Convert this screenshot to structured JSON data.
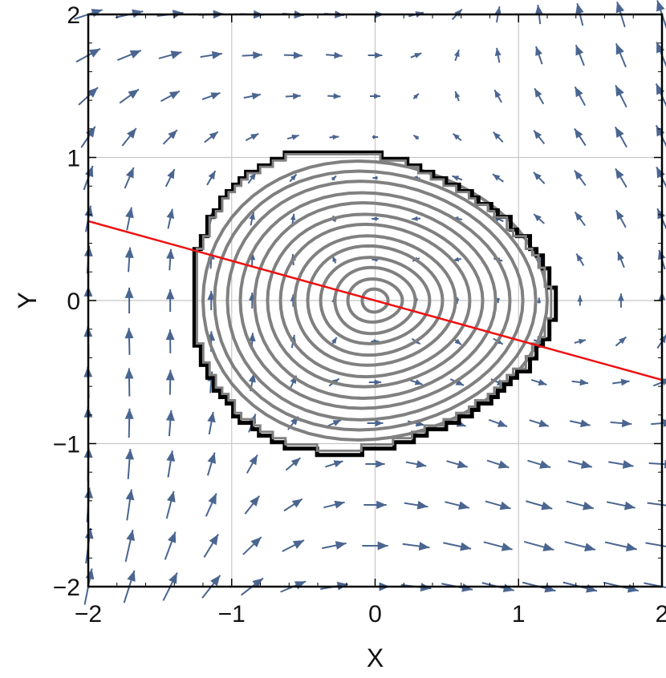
{
  "chart_data": {
    "type": "vector_field_contour",
    "xlabel": "X",
    "ylabel": "Y",
    "xlim": [
      -2,
      2
    ],
    "ylim": [
      -2,
      2
    ],
    "x_ticks": [
      {
        "value": -2,
        "label": "−2"
      },
      {
        "value": -1,
        "label": "−1"
      },
      {
        "value": 0,
        "label": "0"
      },
      {
        "value": 1,
        "label": "1"
      },
      {
        "value": 2,
        "label": "2"
      }
    ],
    "y_ticks": [
      {
        "value": -2,
        "label": "−2"
      },
      {
        "value": -1,
        "label": "−1"
      },
      {
        "value": 0,
        "label": "0"
      },
      {
        "value": 1,
        "label": "1"
      },
      {
        "value": 2,
        "label": "2"
      }
    ],
    "grid": true,
    "vector_field": {
      "color": "#4a6590",
      "x_range": [
        -2,
        2
      ],
      "y_range": [
        -2,
        2
      ],
      "grid_count": 15
    },
    "contours": {
      "color": "#808080",
      "boundary_color": "#000000",
      "center": [
        0,
        0
      ],
      "radii_x": [
        0.09,
        0.19,
        0.28,
        0.38,
        0.47,
        0.56,
        0.66,
        0.75,
        0.84,
        0.94,
        1.03,
        1.12,
        1.2
      ],
      "radii_y": [
        0.08,
        0.15,
        0.23,
        0.3,
        0.38,
        0.45,
        0.53,
        0.6,
        0.68,
        0.75,
        0.83,
        0.9,
        0.97
      ],
      "outer_boundary": {
        "x_min": -1.28,
        "x_max": 1.25,
        "y_min": -1.04,
        "y_max": 1.03
      }
    },
    "line": {
      "color": "#ee1111",
      "points": [
        [
          -2.0,
          0.555
        ],
        [
          2.0,
          -0.555
        ]
      ]
    }
  }
}
